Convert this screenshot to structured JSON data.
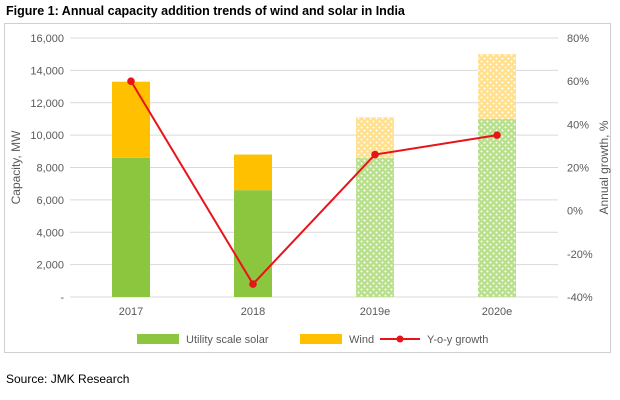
{
  "figure_title": "Figure 1: Annual capacity addition trends of wind and solar in India",
  "source": "Source: JMK Research",
  "colors": {
    "solar": "#8cc63f",
    "wind": "#ffc000",
    "solar_forecast_dot": "#b8df8c",
    "wind_forecast_dot": "#ffe08f",
    "growth": "#e8141a",
    "axis_text": "#595959",
    "gridline": "#d9d9d9"
  },
  "chart_data": {
    "type": "bar",
    "title": "Annual capacity addition trends of wind and solar in India",
    "categories": [
      "2017",
      "2018",
      "2019e",
      "2020e"
    ],
    "forecast": [
      false,
      false,
      true,
      true
    ],
    "series": [
      {
        "name": "Utility scale solar",
        "kind": "stacked-bar",
        "axis": "left",
        "values": [
          8600,
          6600,
          8600,
          11000
        ]
      },
      {
        "name": "Wind",
        "kind": "stacked-bar",
        "axis": "left",
        "values": [
          4700,
          2200,
          2500,
          4000
        ]
      },
      {
        "name": "Y-o-y growth",
        "kind": "line",
        "axis": "right",
        "values": [
          60,
          -34,
          26,
          35
        ]
      }
    ],
    "ylabel": "Capacity, MW",
    "y2label": "Annual growth, %",
    "ylim": [
      0,
      16000
    ],
    "y2lim": [
      -40,
      80
    ],
    "yticks": [
      "-",
      "2,000",
      "4,000",
      "6,000",
      "8,000",
      "10,000",
      "12,000",
      "14,000",
      "16,000"
    ],
    "y2ticks": [
      "-40%",
      "-20%",
      "0%",
      "20%",
      "40%",
      "60%",
      "80%"
    ],
    "legend": [
      "Utility scale solar",
      "Wind",
      "Y-o-y growth"
    ],
    "legend_position": "bottom"
  }
}
